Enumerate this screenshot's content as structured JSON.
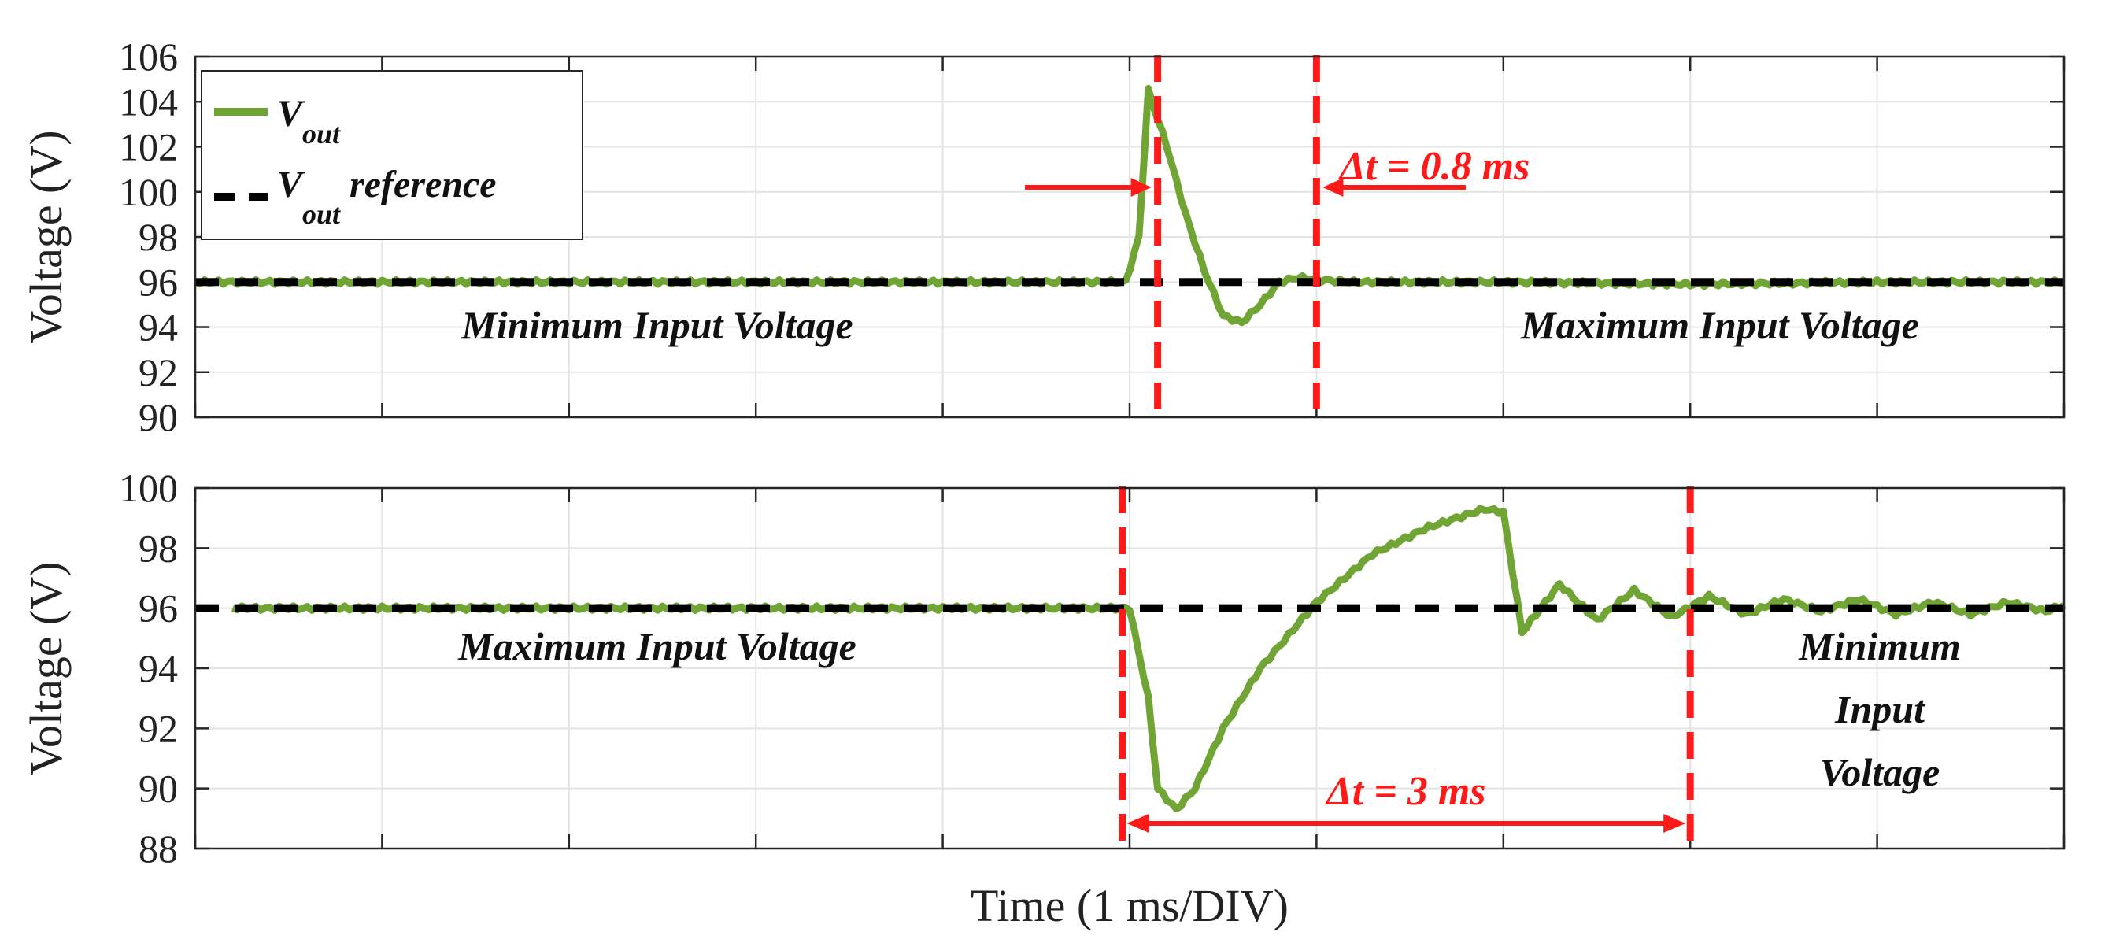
{
  "chart_data": [
    {
      "type": "line",
      "title": "",
      "xlabel": "",
      "ylabel": "Voltage (V)",
      "ylim": [
        90,
        106
      ],
      "yticks": [
        "90",
        "92",
        "94",
        "96",
        "98",
        "100",
        "102",
        "104",
        "106"
      ],
      "xlim": [
        0,
        10
      ],
      "grid": true,
      "series": [
        {
          "name": "V_out",
          "color": "#70a535",
          "x": [
            0,
            1,
            2,
            3,
            4,
            4.9,
            4.98,
            5.05,
            5.1,
            5.2,
            5.3,
            5.4,
            5.5,
            5.6,
            5.7,
            5.8,
            5.9,
            6.0,
            6.2,
            6.5,
            7.0,
            8.0,
            9.0,
            10.0
          ],
          "y": [
            96,
            96,
            96,
            96,
            96,
            96,
            96,
            98,
            104.5,
            102,
            99,
            96.5,
            94.5,
            94.2,
            95,
            96,
            96.2,
            96.1,
            96,
            96,
            96,
            95.9,
            96,
            96
          ]
        },
        {
          "name": "V_out reference",
          "color": "#000000",
          "style": "dashed",
          "x": [
            0,
            10
          ],
          "y": [
            96,
            96
          ]
        }
      ],
      "legend": {
        "position": "top-left",
        "entries": [
          {
            "main": "V",
            "sub": "out",
            "suffix": ""
          },
          {
            "main": "V",
            "sub": "out",
            "suffix": " reference"
          }
        ]
      },
      "annotations": {
        "left_region": "Minimum Input Voltage",
        "right_region": "Maximum Input Voltage",
        "delta_t": "Δt = 0.8 ms",
        "marker_start": 5.15,
        "marker_end": 6.0
      }
    },
    {
      "type": "line",
      "title": "",
      "xlabel": "Time (1 ms/DIV)",
      "ylabel": "Voltage (V)",
      "ylim": [
        88,
        100
      ],
      "yticks": [
        "88",
        "90",
        "92",
        "94",
        "96",
        "98",
        "100"
      ],
      "xlim": [
        0,
        10
      ],
      "grid": true,
      "series": [
        {
          "name": "V_out",
          "color": "#70a535",
          "x": [
            0.2,
            1,
            2,
            3,
            4,
            4.9,
            5.0,
            5.1,
            5.15,
            5.25,
            5.35,
            5.5,
            5.7,
            6.0,
            6.3,
            6.6,
            6.9,
            7.0,
            7.1,
            7.3,
            7.5,
            7.7,
            7.9,
            8.1,
            8.3,
            8.5,
            8.7,
            8.9,
            9.1,
            9.3,
            9.5,
            9.7,
            9.9,
            10.0
          ],
          "y": [
            96,
            96,
            96,
            96,
            96,
            96,
            96,
            93,
            90,
            89.3,
            90,
            92,
            94,
            96.2,
            97.8,
            98.7,
            99.3,
            99.2,
            95.2,
            96.8,
            95.6,
            96.6,
            95.7,
            96.4,
            95.8,
            96.3,
            95.9,
            96.3,
            95.8,
            96.2,
            95.8,
            96.2,
            95.9,
            96.1
          ]
        },
        {
          "name": "V_out reference",
          "color": "#000000",
          "style": "dashed",
          "x": [
            0,
            10
          ],
          "y": [
            96,
            96
          ]
        }
      ],
      "annotations": {
        "left_region": "Maximum Input Voltage",
        "right_region_lines": [
          "Minimum",
          "Input",
          "Voltage"
        ],
        "delta_t": "Δt = 3 ms",
        "marker_start": 4.96,
        "marker_end": 8.0
      }
    }
  ],
  "colors": {
    "signal": "#70a535",
    "reference": "#000000",
    "marker": "#ff1a1a",
    "grid": "#e4e4e4"
  }
}
